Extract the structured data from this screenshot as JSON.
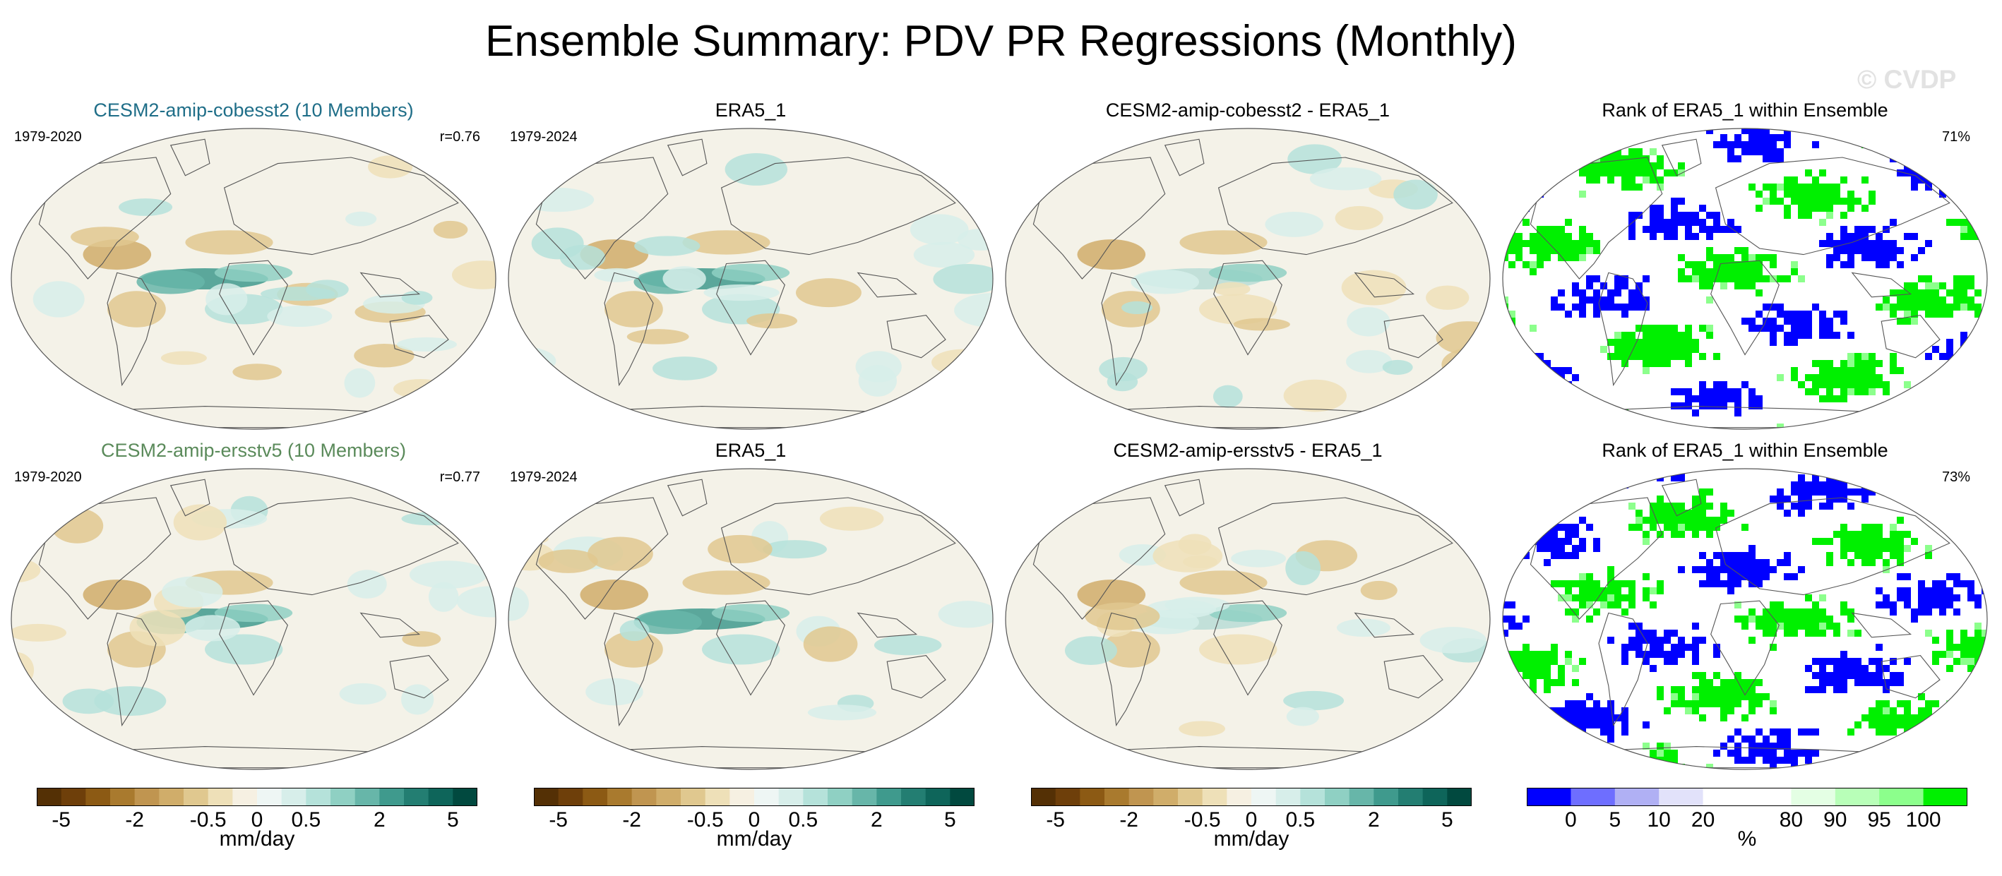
{
  "title": "Ensemble Summary: PDV PR Regressions (Monthly)",
  "watermark": "© CVDP",
  "rows": [
    {
      "panels": [
        {
          "title": "CESM2-amip-cobesst2 (10 Members)",
          "title_color": "#1f6e88",
          "left": "1979-2020",
          "right": "r=0.76",
          "kind": "pr",
          "seed": 11
        },
        {
          "title": "ERA5_1",
          "title_color": "#000000",
          "left": "1979-2024",
          "right": "",
          "kind": "pr",
          "seed": 23
        },
        {
          "title": "CESM2-amip-cobesst2 - ERA5_1",
          "title_color": "#000000",
          "left": "",
          "right": "",
          "kind": "prdiff",
          "seed": 37
        },
        {
          "title": "Rank of ERA5_1 within Ensemble",
          "title_color": "#000000",
          "left": "",
          "right": "71%",
          "kind": "rank",
          "seed": 41
        }
      ]
    },
    {
      "panels": [
        {
          "title": "CESM2-amip-ersstv5 (10 Members)",
          "title_color": "#5a8a5a",
          "left": "1979-2020",
          "right": "r=0.77",
          "kind": "pr",
          "seed": 53
        },
        {
          "title": "ERA5_1",
          "title_color": "#000000",
          "left": "1979-2024",
          "right": "",
          "kind": "pr",
          "seed": 67
        },
        {
          "title": "CESM2-amip-ersstv5 - ERA5_1",
          "title_color": "#000000",
          "left": "",
          "right": "",
          "kind": "prdiff",
          "seed": 71
        },
        {
          "title": "Rank of ERA5_1 within Ensemble",
          "title_color": "#000000",
          "left": "",
          "right": "73%",
          "kind": "rank",
          "seed": 83
        }
      ]
    }
  ],
  "colorbars": {
    "pr": {
      "units": "mm/day",
      "colors": [
        "#543005",
        "#6e3f0a",
        "#8c5a14",
        "#a97a2e",
        "#c09550",
        "#d0ad6a",
        "#e0c88f",
        "#eee0b8",
        "#f6f0e2",
        "#eef6f4",
        "#d7eeea",
        "#b5e2da",
        "#8fd0c3",
        "#67b6a9",
        "#3f9a8d",
        "#237e72",
        "#0e655a",
        "#01493f"
      ],
      "ticks": [
        {
          "label": "-5",
          "index": 1
        },
        {
          "label": "-2",
          "index": 4
        },
        {
          "label": "-0.5",
          "index": 7
        },
        {
          "label": "0",
          "index": 9
        },
        {
          "label": "0.5",
          "index": 11
        },
        {
          "label": "2",
          "index": 14
        },
        {
          "label": "5",
          "index": 17
        }
      ]
    },
    "rank": {
      "units": "%",
      "colors": [
        "#0000ff",
        "#6e6eff",
        "#b0b0f4",
        "#e2e2fa",
        "#ffffff",
        "#ffffff",
        "#e4ffe4",
        "#b8ffb8",
        "#8cff8c",
        "#00f000"
      ],
      "ticks": [
        {
          "label": "0",
          "index": 1
        },
        {
          "label": "5",
          "index": 2
        },
        {
          "label": "10",
          "index": 3
        },
        {
          "label": "20",
          "index": 4
        },
        {
          "label": "%",
          "index": -1
        },
        {
          "label": "80",
          "index": 6
        },
        {
          "label": "90",
          "index": 7
        },
        {
          "label": "95",
          "index": 8
        },
        {
          "label": "100",
          "index": 9
        }
      ]
    }
  },
  "chart_data": {
    "type": "heatmap",
    "description_of_fields": "Four map panels per row: ensemble-mean PR regression, observed ERA5 regression, difference, and percentile rank of observations within ensemble.",
    "projection": "global ellipse (Robinson-like)",
    "rows": [
      {
        "model": "CESM2-amip-cobesst2",
        "members": 10,
        "model_years": "1979-2020",
        "obs_years": "1979-2024",
        "pattern_correlation": 0.76,
        "rank_percent_area": 71
      },
      {
        "model": "CESM2-amip-ersstv5",
        "members": 10,
        "model_years": "1979-2020",
        "obs_years": "1979-2024",
        "pattern_correlation": 0.77,
        "rank_percent_area": 73
      }
    ],
    "pr_colorbar_levels": [
      -5,
      -4,
      -3,
      -2,
      -1,
      -0.5,
      -0.25,
      -0.1,
      0,
      0.1,
      0.25,
      0.5,
      1,
      2,
      3,
      4,
      5
    ],
    "pr_units": "mm/day",
    "rank_colorbar_levels": [
      0,
      5,
      10,
      20,
      80,
      90,
      95,
      100
    ],
    "rank_units": "%"
  }
}
